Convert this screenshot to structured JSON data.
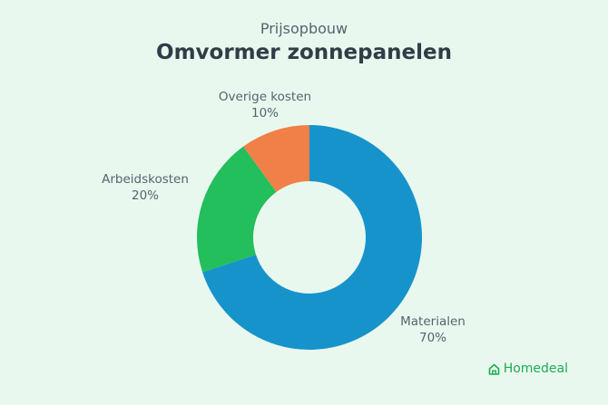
{
  "header": {
    "subtitle": "Prijsopbouw",
    "title": "Omvormer zonnepanelen"
  },
  "chart_data": {
    "type": "pie",
    "donut": true,
    "slices": [
      {
        "name": "Materialen",
        "value": 70,
        "value_label": "70%",
        "color": "#1793cc"
      },
      {
        "name": "Arbeidskosten",
        "value": 20,
        "value_label": "20%",
        "color": "#22bf5c"
      },
      {
        "name": "Overige kosten",
        "value": 10,
        "value_label": "10%",
        "color": "#f08047"
      }
    ],
    "legend": "none",
    "labels": "outside"
  },
  "brand": {
    "name": "Homedeal",
    "icon": "house-icon",
    "color": "#1faa55"
  }
}
